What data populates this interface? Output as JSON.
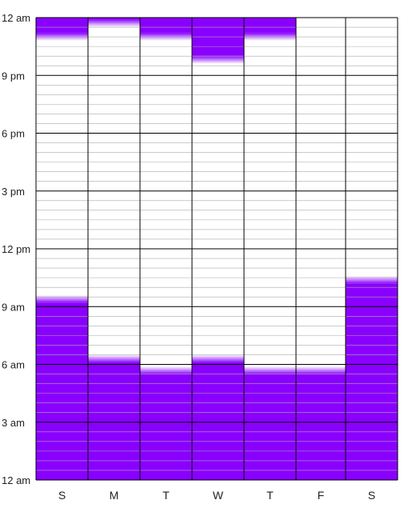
{
  "chart_data": {
    "type": "bar",
    "subtype": "floating-range-columns",
    "categories": [
      "S",
      "M",
      "T",
      "W",
      "T",
      "F",
      "S"
    ],
    "y_axis": {
      "unit": "hour-of-day",
      "range": [
        0,
        24
      ],
      "ticks": [
        {
          "value": 0,
          "label": "12 am"
        },
        {
          "value": 3,
          "label": "3 am"
        },
        {
          "value": 6,
          "label": "6 am"
        },
        {
          "value": 9,
          "label": "9 am"
        },
        {
          "value": 12,
          "label": "12 pm"
        },
        {
          "value": 15,
          "label": "3 pm"
        },
        {
          "value": 18,
          "label": "6 pm"
        },
        {
          "value": 21,
          "label": "9 pm"
        },
        {
          "value": 24,
          "label": "12 am"
        }
      ],
      "minor_step_hours": 0.5
    },
    "series": [
      {
        "ranges": [
          [
            [
              0,
              9.6
            ],
            [
              22.8,
              24
            ]
          ],
          [
            [
              0,
              6.5
            ],
            [
              23.5,
              24
            ]
          ],
          [
            [
              0,
              5.9
            ],
            [
              22.8,
              24
            ]
          ],
          [
            [
              0,
              6.5
            ],
            [
              21.6,
              24
            ]
          ],
          [
            [
              0,
              5.9
            ],
            [
              22.8,
              24
            ]
          ],
          [
            [
              0,
              5.9
            ]
          ],
          [
            [
              0,
              10.6
            ]
          ]
        ]
      }
    ],
    "colors": {
      "bar": "#8a00ff",
      "fade": "#ffffff",
      "grid_major": "#000000",
      "grid_minor": "#aaaaaa"
    },
    "grid": true,
    "legend": "none"
  }
}
